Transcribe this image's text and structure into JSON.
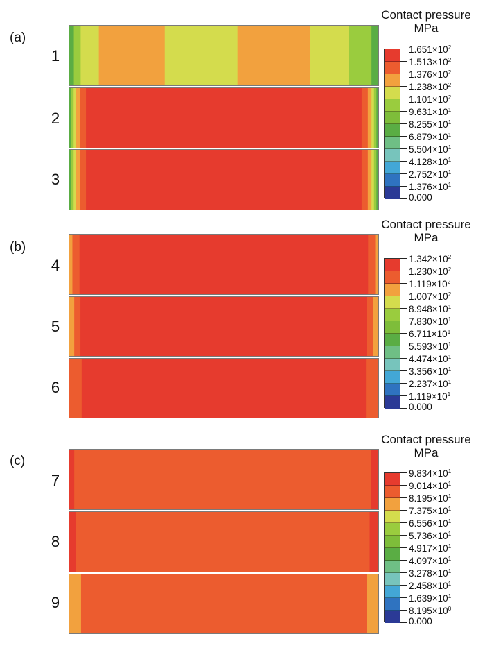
{
  "legend_title": "Contact pressure",
  "legend_unit": "MPa",
  "colors": {
    "c12": "#e63b2e",
    "c11": "#ec5c2f",
    "c10": "#f2a13e",
    "c9": "#d4dc4d",
    "c8": "#9acc3e",
    "c7": "#7ebd3a",
    "c6": "#5aad44",
    "c5": "#6fbf85",
    "c4": "#77c4bc",
    "c3": "#43a7d6",
    "c2": "#2f73c0",
    "c1": "#2b3a96",
    "strip_border": "#7a7a7a"
  },
  "panels": [
    {
      "label": "(a)",
      "legend_ticks": [
        {
          "mant": "1.651",
          "exp": "2"
        },
        {
          "mant": "1.513",
          "exp": "2"
        },
        {
          "mant": "1.376",
          "exp": "2"
        },
        {
          "mant": "1.238",
          "exp": "2"
        },
        {
          "mant": "1.101",
          "exp": "2"
        },
        {
          "mant": "9.631",
          "exp": "1"
        },
        {
          "mant": "8.255",
          "exp": "1"
        },
        {
          "mant": "6.879",
          "exp": "1"
        },
        {
          "mant": "5.504",
          "exp": "1"
        },
        {
          "mant": "4.128",
          "exp": "1"
        },
        {
          "mant": "2.752",
          "exp": "1"
        },
        {
          "mant": "1.376",
          "exp": "1"
        },
        {
          "mant": "0.000",
          "exp": ""
        }
      ],
      "rows": [
        {
          "label": "1",
          "bands": [
            [
              "c6",
              1
            ],
            [
              "c8",
              1.5
            ],
            [
              "c9",
              4
            ],
            [
              "c10",
              14.5
            ],
            [
              "c9",
              16
            ],
            [
              "c10",
              16
            ],
            [
              "c9",
              8.5
            ],
            [
              "c8",
              5
            ],
            [
              "c6",
              1.5
            ]
          ]
        },
        {
          "label": "2",
          "bands": [
            [
              "c6",
              0.6
            ],
            [
              "c8",
              0.8
            ],
            [
              "c9",
              0.8
            ],
            [
              "c10",
              1.2
            ],
            [
              "c11",
              2.0
            ],
            [
              "c12",
              89.2
            ],
            [
              "c11",
              2.0
            ],
            [
              "c10",
              1.2
            ],
            [
              "c9",
              0.8
            ],
            [
              "c8",
              0.8
            ],
            [
              "c6",
              0.6
            ]
          ]
        },
        {
          "label": "3",
          "bands": [
            [
              "c6",
              0.6
            ],
            [
              "c8",
              0.8
            ],
            [
              "c9",
              0.8
            ],
            [
              "c10",
              1.2
            ],
            [
              "c11",
              2.0
            ],
            [
              "c12",
              89.2
            ],
            [
              "c11",
              2.0
            ],
            [
              "c10",
              1.2
            ],
            [
              "c9",
              0.8
            ],
            [
              "c8",
              0.8
            ],
            [
              "c6",
              0.6
            ]
          ]
        }
      ]
    },
    {
      "label": "(b)",
      "legend_ticks": [
        {
          "mant": "1.342",
          "exp": "2"
        },
        {
          "mant": "1.230",
          "exp": "2"
        },
        {
          "mant": "1.119",
          "exp": "2"
        },
        {
          "mant": "1.007",
          "exp": "2"
        },
        {
          "mant": "8.948",
          "exp": "1"
        },
        {
          "mant": "7.830",
          "exp": "1"
        },
        {
          "mant": "6.711",
          "exp": "1"
        },
        {
          "mant": "5.593",
          "exp": "1"
        },
        {
          "mant": "4.474",
          "exp": "1"
        },
        {
          "mant": "3.356",
          "exp": "1"
        },
        {
          "mant": "2.237",
          "exp": "1"
        },
        {
          "mant": "1.119",
          "exp": "1"
        },
        {
          "mant": "0.000",
          "exp": ""
        }
      ],
      "rows": [
        {
          "label": "4",
          "bands": [
            [
              "c10",
              1.0
            ],
            [
              "c11",
              2.3
            ],
            [
              "c12",
              93.4
            ],
            [
              "c11",
              2.3
            ],
            [
              "c10",
              1.0
            ]
          ]
        },
        {
          "label": "5",
          "bands": [
            [
              "c10",
              1.6
            ],
            [
              "c11",
              2.0
            ],
            [
              "c12",
              92.8
            ],
            [
              "c11",
              2.0
            ],
            [
              "c10",
              1.6
            ]
          ]
        },
        {
          "label": "6",
          "bands": [
            [
              "c11",
              4.0
            ],
            [
              "c12",
              92.0
            ],
            [
              "c11",
              4.0
            ]
          ]
        }
      ]
    },
    {
      "label": "(c)",
      "legend_ticks": [
        {
          "mant": "9.834",
          "exp": "1"
        },
        {
          "mant": "9.014",
          "exp": "1"
        },
        {
          "mant": "8.195",
          "exp": "1"
        },
        {
          "mant": "7.375",
          "exp": "1"
        },
        {
          "mant": "6.556",
          "exp": "1"
        },
        {
          "mant": "5.736",
          "exp": "1"
        },
        {
          "mant": "4.917",
          "exp": "1"
        },
        {
          "mant": "4.097",
          "exp": "1"
        },
        {
          "mant": "3.278",
          "exp": "1"
        },
        {
          "mant": "2.458",
          "exp": "1"
        },
        {
          "mant": "1.639",
          "exp": "1"
        },
        {
          "mant": "8.195",
          "exp": "0"
        },
        {
          "mant": "0.000",
          "exp": ""
        }
      ],
      "rows": [
        {
          "label": "7",
          "bands": [
            [
              "c12",
              1.6
            ],
            [
              "c11",
              96.0
            ],
            [
              "c12",
              2.4
            ]
          ]
        },
        {
          "label": "8",
          "bands": [
            [
              "c12",
              2.2
            ],
            [
              "c11",
              95.0
            ],
            [
              "c12",
              2.8
            ]
          ]
        },
        {
          "label": "9",
          "bands": [
            [
              "c10",
              3.8
            ],
            [
              "c11",
              92.4
            ],
            [
              "c10",
              3.8
            ]
          ]
        }
      ]
    }
  ],
  "legend_colors": [
    "c12",
    "c11",
    "c10",
    "c9",
    "c8",
    "c7",
    "c6",
    "c5",
    "c4",
    "c3",
    "c2",
    "c1"
  ]
}
